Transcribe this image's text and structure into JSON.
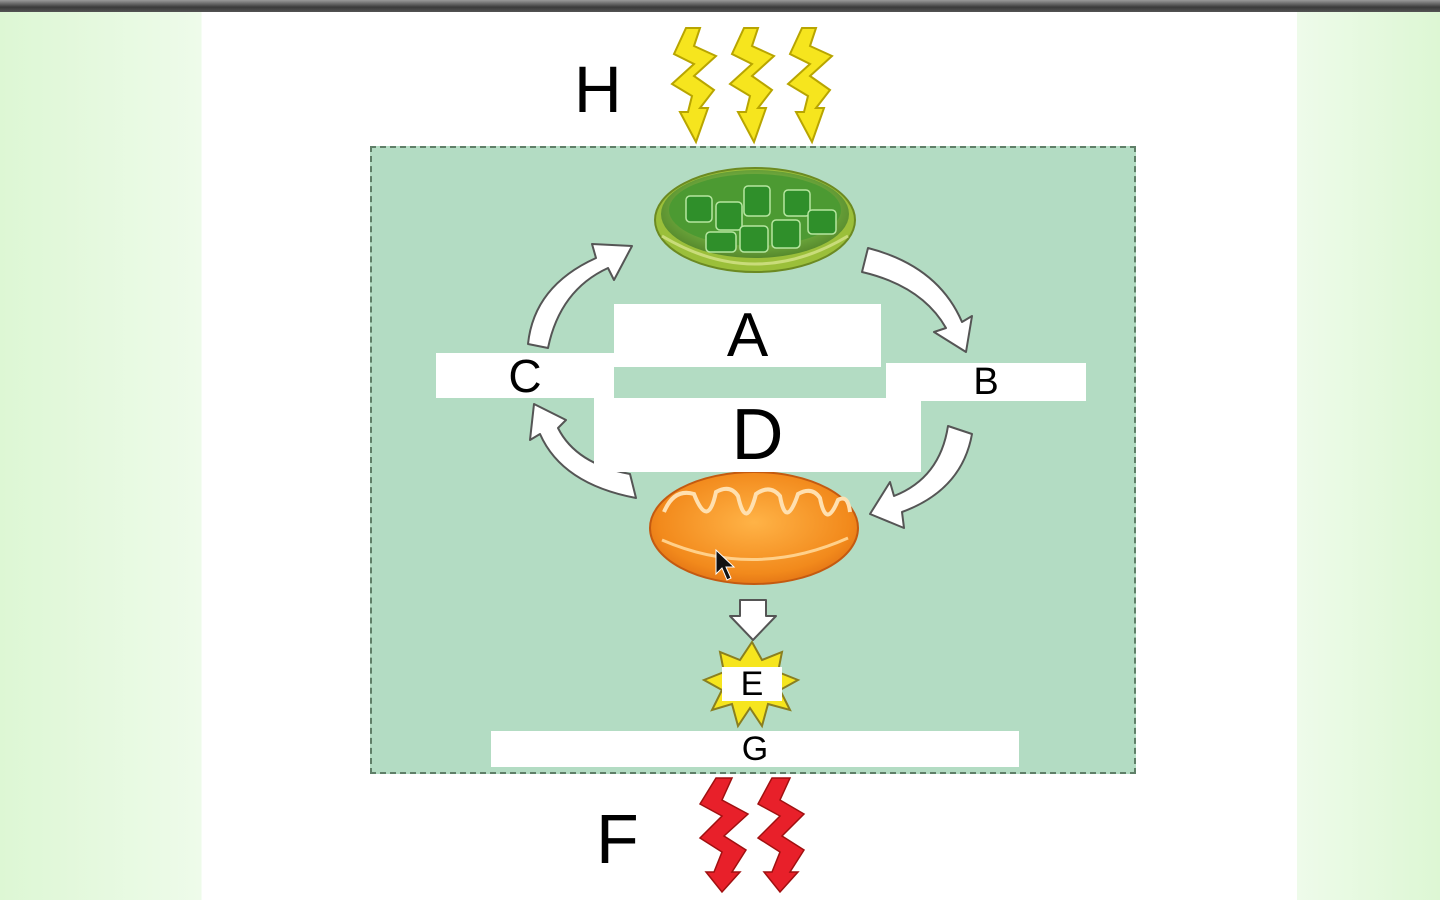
{
  "diagram": {
    "labels": {
      "H": "H",
      "A": "A",
      "B": "B",
      "C": "C",
      "D": "D",
      "E": "E",
      "F": "F",
      "G": "G"
    },
    "colors": {
      "panel_fill": "#b3dcc3",
      "panel_border": "#5f7f68",
      "light_bolt": "#f6e51e",
      "heat_bolt": "#e8202a",
      "chloroplast": "#5da83a",
      "mitochondrion": "#f39a2b",
      "cycle_arrow": "#ffffff"
    },
    "icons": [
      "sunlight-bolt-icon",
      "chloroplast-icon",
      "mitochondrion-icon",
      "cycle-arrow-icon",
      "energy-burst-icon",
      "heat-bolt-icon",
      "mouse-cursor-icon"
    ]
  }
}
